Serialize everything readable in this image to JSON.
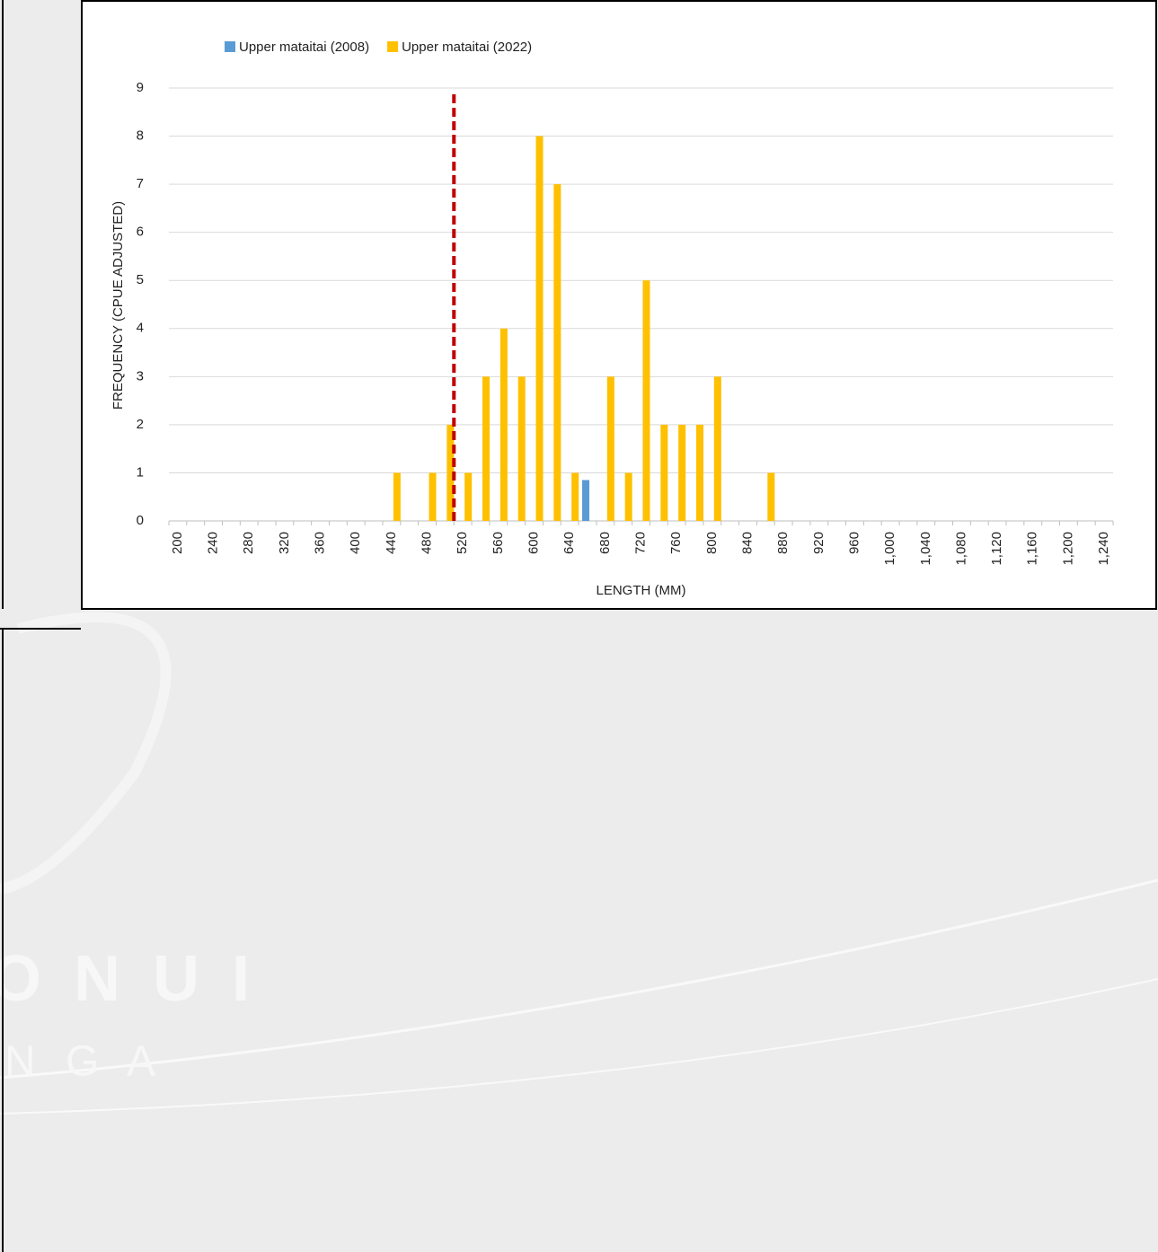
{
  "chart_data": {
    "type": "bar",
    "categories": [
      "200",
      null,
      "240",
      null,
      "280",
      null,
      "320",
      null,
      "360",
      null,
      "400",
      null,
      "440",
      null,
      "480",
      null,
      "520",
      null,
      "560",
      null,
      "600",
      null,
      "640",
      null,
      "680",
      null,
      "720",
      null,
      "760",
      null,
      "800",
      null,
      "840",
      null,
      "880",
      null,
      "920",
      null,
      "960",
      null,
      "1,000",
      null,
      "1,040",
      null,
      "1,080",
      null,
      "1,120",
      null,
      "1,160",
      null,
      "1,200",
      null,
      "1,240"
    ],
    "series": [
      {
        "name": "Upper mataitai (2008)",
        "color": "#5b9bd5",
        "values": [
          0,
          0,
          0,
          0,
          0,
          0,
          0,
          0,
          0,
          0,
          0,
          0,
          0,
          0,
          0,
          0,
          0,
          0,
          0,
          0,
          0,
          0,
          0,
          0.85,
          0,
          0,
          0,
          0,
          0,
          0,
          0,
          0,
          0,
          0,
          0,
          0,
          0,
          0,
          0,
          0,
          0,
          0,
          0,
          0,
          0,
          0,
          0,
          0,
          0,
          0,
          0,
          0,
          0
        ]
      },
      {
        "name": "Upper mataitai (2022)",
        "color": "#ffc000",
        "values": [
          0,
          0,
          0,
          0,
          0,
          0,
          0,
          0,
          0,
          0,
          0,
          0,
          1,
          0,
          1,
          2,
          1,
          3,
          4,
          3,
          8,
          7,
          1,
          0,
          3,
          1,
          5,
          2,
          2,
          2,
          3,
          0,
          0,
          1,
          0,
          0,
          0,
          0,
          0,
          0,
          0,
          0,
          0,
          0,
          0,
          0,
          0,
          0,
          0,
          0,
          0,
          0,
          0
        ]
      }
    ],
    "reference_line": {
      "x": 510,
      "color": "#c00000"
    },
    "ylim": [
      0,
      9
    ],
    "yticks": [
      0,
      1,
      2,
      3,
      4,
      5,
      6,
      7,
      8,
      9
    ],
    "grid": true,
    "x_label": "LENGTH (MM)",
    "y_label": "FREQUENCY (CPUE ADJUSTED)",
    "legend": "top"
  },
  "background_text": [
    "O N U I",
    "N G A"
  ]
}
